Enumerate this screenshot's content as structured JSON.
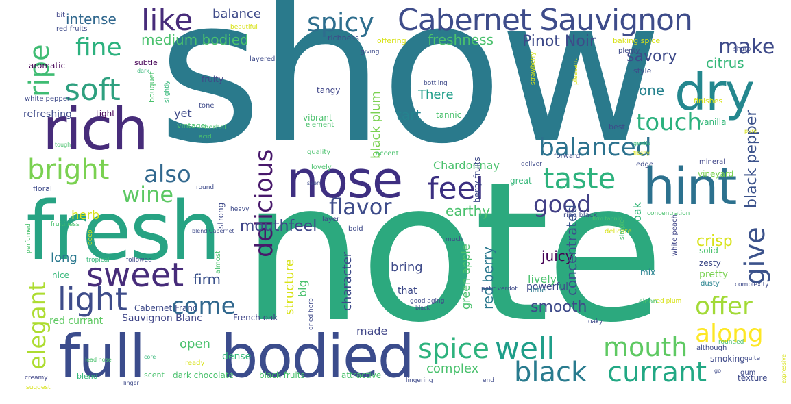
{
  "palette": {
    "background": "#ffffff"
  },
  "words": [
    {
      "text": "show",
      "color": "#2a7a8c"
    },
    {
      "text": "note",
      "color": "#2ca97e"
    },
    {
      "text": "fresh",
      "color": "#27a383"
    },
    {
      "text": "rich",
      "color": "#472c7a"
    },
    {
      "text": "nose",
      "color": "#3e2f81"
    },
    {
      "text": "full",
      "color": "#3b4c8c"
    },
    {
      "text": "bodied",
      "color": "#3b4c8c"
    },
    {
      "text": "dry",
      "color": "#24878e"
    },
    {
      "text": "hint",
      "color": "#2c718e"
    },
    {
      "text": "Cabernet Sauvignon",
      "color": "#3e4c8a"
    },
    {
      "text": "spicy",
      "color": "#2e6e8e"
    },
    {
      "text": "like",
      "color": "#472c7a"
    },
    {
      "text": "fine",
      "color": "#2cb17e"
    },
    {
      "text": "soft",
      "color": "#2ea07f"
    },
    {
      "text": "ripe",
      "color": "#3fbc73"
    },
    {
      "text": "bright",
      "color": "#7ad151"
    },
    {
      "text": "also",
      "color": "#31688e"
    },
    {
      "text": "wine",
      "color": "#5cc863"
    },
    {
      "text": "sweet",
      "color": "#472c7a"
    },
    {
      "text": "light",
      "color": "#3e4c8a"
    },
    {
      "text": "come",
      "color": "#31688e"
    },
    {
      "text": "elegant",
      "color": "#addc30"
    },
    {
      "text": "feel",
      "color": "#3b2f80"
    },
    {
      "text": "taste",
      "color": "#2db27d"
    },
    {
      "text": "balanced",
      "color": "#2c728e"
    },
    {
      "text": "touch",
      "color": "#2cb17e"
    },
    {
      "text": "flavor",
      "color": "#3e4c8a"
    },
    {
      "text": "good",
      "color": "#424086"
    },
    {
      "text": "delicious",
      "color": "#48196b"
    },
    {
      "text": "give",
      "color": "#3b528b"
    },
    {
      "text": "spice",
      "color": "#2db27d"
    },
    {
      "text": "well",
      "color": "#1f9e89"
    },
    {
      "text": "black",
      "color": "#297b8e"
    },
    {
      "text": "currant",
      "color": "#22a884"
    },
    {
      "text": "mouth",
      "color": "#5ec962"
    },
    {
      "text": "offer",
      "color": "#a2da37"
    },
    {
      "text": "along",
      "color": "#fde725"
    },
    {
      "text": "make",
      "color": "#3e4a89"
    },
    {
      "text": "savory",
      "color": "#3e4a89"
    },
    {
      "text": "citrus",
      "color": "#35b779"
    },
    {
      "text": "Pinot Noir",
      "color": "#3e4a89"
    },
    {
      "text": "freshness",
      "color": "#4ac16d"
    },
    {
      "text": "medium bodied",
      "color": "#4ac16d"
    },
    {
      "text": "intense",
      "color": "#31688e"
    },
    {
      "text": "balance",
      "color": "#3e4a89"
    },
    {
      "text": "black pepper",
      "color": "#3b528b"
    },
    {
      "text": "mouthfeel",
      "color": "#404688"
    },
    {
      "text": "earthy",
      "color": "#4ac16d"
    },
    {
      "text": "crisp",
      "color": "#d8e219"
    },
    {
      "text": "juicy",
      "color": "#440154"
    },
    {
      "text": "firm",
      "color": "#3b528b"
    },
    {
      "text": "smooth",
      "color": "#3e4a89"
    },
    {
      "text": "concentrated",
      "color": "#3b528b"
    },
    {
      "text": "red berry",
      "color": "#2a788e"
    },
    {
      "text": "structure",
      "color": "#d8e219"
    },
    {
      "text": "character",
      "color": "#3e4a89"
    },
    {
      "text": "bring",
      "color": "#3e4a89"
    },
    {
      "text": "green apple",
      "color": "#4ac16d"
    },
    {
      "text": "lively",
      "color": "#4ac16d"
    },
    {
      "text": "complex",
      "color": "#4ac16d"
    },
    {
      "text": "tart",
      "color": "#26828e"
    },
    {
      "text": "There",
      "color": "#1f9e89"
    },
    {
      "text": "black plum",
      "color": "#7ad151"
    },
    {
      "text": "Chardonnay",
      "color": "#4ac16d"
    },
    {
      "text": "one",
      "color": "#26828e"
    },
    {
      "text": "herb",
      "color": "#d8e219"
    },
    {
      "text": "long",
      "color": "#2a788e"
    },
    {
      "text": "open",
      "color": "#4ac16d"
    },
    {
      "text": "made",
      "color": "#404688"
    },
    {
      "text": "oak",
      "color": "#35b779"
    },
    {
      "text": "yet",
      "color": "#3e4a89"
    },
    {
      "text": "big",
      "color": "#4ac16d"
    },
    {
      "text": "that",
      "color": "#3e4a89"
    },
    {
      "text": "powerful",
      "color": "#3e4a89"
    },
    {
      "text": "pretty",
      "color": "#7ad151"
    },
    {
      "text": "dense",
      "color": "#35b779"
    },
    {
      "text": "refreshing",
      "color": "#3e4a89"
    },
    {
      "text": "aromatic",
      "color": "#440154"
    },
    {
      "text": "red currant",
      "color": "#5ec962"
    },
    {
      "text": "Sauvignon Blanc",
      "color": "#404688"
    },
    {
      "text": "Cabernet Franc",
      "color": "#3e4a89"
    },
    {
      "text": "dark chocolate",
      "color": "#4ac16d"
    },
    {
      "text": "black fruits",
      "color": "#4ac16d"
    },
    {
      "text": "attractive",
      "color": "#4ac16d"
    },
    {
      "text": "tannic",
      "color": "#4ac16d"
    },
    {
      "text": "vibrant",
      "color": "#4ac16d"
    },
    {
      "text": "tangy",
      "color": "#404688"
    },
    {
      "text": "fruity",
      "color": "#404688"
    },
    {
      "text": "vanilla",
      "color": "#35b779"
    },
    {
      "text": "vineyard",
      "color": "#7ad151"
    },
    {
      "text": "mineral",
      "color": "#404688"
    },
    {
      "text": "berry fruits",
      "color": "#3e4a89"
    },
    {
      "text": "French oak",
      "color": "#404688"
    },
    {
      "text": "zesty",
      "color": "#3e4a89"
    },
    {
      "text": "nice",
      "color": "#35b779"
    },
    {
      "text": "mix",
      "color": "#26828e"
    },
    {
      "text": "clean",
      "color": "#4ac16d"
    },
    {
      "text": "solid",
      "color": "#4ac16d"
    },
    {
      "text": "dusty",
      "color": "#26828e"
    },
    {
      "text": "smoking",
      "color": "#3e4a89"
    },
    {
      "text": "texture",
      "color": "#3e4a89"
    },
    {
      "text": "ready",
      "color": "#d8e219"
    },
    {
      "text": "little",
      "color": "#2a788e"
    },
    {
      "text": "quality",
      "color": "#4ac16d"
    },
    {
      "text": "accent",
      "color": "#4ac16d"
    },
    {
      "text": "lovely",
      "color": "#4ac16d"
    },
    {
      "text": "edge",
      "color": "#3e4a89"
    },
    {
      "text": "great",
      "color": "#35b779"
    },
    {
      "text": "forward",
      "color": "#3e4a89"
    },
    {
      "text": "strong",
      "color": "#3e4a89"
    },
    {
      "text": "layer",
      "color": "#404688"
    },
    {
      "text": "tight",
      "color": "#440154"
    },
    {
      "text": "subtle",
      "color": "#440154"
    },
    {
      "text": "bouquet",
      "color": "#4ac16d"
    },
    {
      "text": "richness",
      "color": "#3e4a89"
    },
    {
      "text": "offering",
      "color": "#d8e219"
    },
    {
      "text": "baking spice",
      "color": "#d8e219"
    },
    {
      "text": "style",
      "color": "#3e4a89"
    },
    {
      "text": "floral",
      "color": "#3e4a89"
    },
    {
      "text": "vintage",
      "color": "#4ac16d"
    },
    {
      "text": "blend",
      "color": "#35b779"
    },
    {
      "text": "scent",
      "color": "#4ac16d"
    },
    {
      "text": "finishes",
      "color": "#d8e219"
    },
    {
      "text": "best",
      "color": "#3e4a89"
    },
    {
      "text": "red fruits",
      "color": "#3e4a89"
    },
    {
      "text": "white pepper",
      "color": "#3e4a89"
    },
    {
      "text": "bit",
      "color": "#404688"
    },
    {
      "text": "almost",
      "color": "#4ac16d"
    },
    {
      "text": "delicate",
      "color": "#d8e219"
    },
    {
      "text": "white peach",
      "color": "#404688"
    },
    {
      "text": "ripe black",
      "color": "#3e4a89"
    },
    {
      "text": "element",
      "color": "#4ac16d"
    },
    {
      "text": "herbal",
      "color": "#4ac16d"
    },
    {
      "text": "layered",
      "color": "#3e4a89"
    },
    {
      "text": "bold",
      "color": "#3e4a89"
    },
    {
      "text": "tone",
      "color": "#3e4a89"
    },
    {
      "text": "plenty",
      "color": "#3e4a89"
    },
    {
      "text": "gum",
      "color": "#3e4a89"
    },
    {
      "text": "slightly",
      "color": "#35b779"
    },
    {
      "text": "bottling",
      "color": "#3e4a89"
    },
    {
      "text": "acid",
      "color": "#4ac16d"
    },
    {
      "text": "deep",
      "color": "#d8e219"
    },
    {
      "text": "tropical",
      "color": "#35b779"
    },
    {
      "text": "although",
      "color": "#3e4a89"
    },
    {
      "text": "quite",
      "color": "#3e4a89"
    },
    {
      "text": "simple",
      "color": "#4ac16d"
    },
    {
      "text": "rounded",
      "color": "#4ac16d"
    },
    {
      "text": "creamy",
      "color": "#404688"
    },
    {
      "text": "suggest",
      "color": "#d8e219"
    },
    {
      "text": "linger",
      "color": "#3e4a89"
    },
    {
      "text": "lingering",
      "color": "#3e4a89"
    },
    {
      "text": "end",
      "color": "#3e4a89"
    },
    {
      "text": "concentration",
      "color": "#4ac16d"
    },
    {
      "text": "red plum",
      "color": "#d8e219"
    },
    {
      "text": "complexity",
      "color": "#3e4a89"
    },
    {
      "text": "dried herb",
      "color": "#3e4a89"
    },
    {
      "text": "good aging",
      "color": "#3e4a89"
    },
    {
      "text": "petit verdot",
      "color": "#3e4a89"
    },
    {
      "text": "oaky",
      "color": "#3e4a89"
    },
    {
      "text": "much",
      "color": "#3e4a89"
    },
    {
      "text": "followed",
      "color": "#3e4a89"
    },
    {
      "text": "perfumed",
      "color": "#4ac16d"
    },
    {
      "text": "fruitiness",
      "color": "#4ac16d"
    },
    {
      "text": "giving",
      "color": "#3e4a89"
    },
    {
      "text": "sharp",
      "color": "#3e4a89"
    },
    {
      "text": "strawberry",
      "color": "#d8e219"
    },
    {
      "text": "pleasant",
      "color": "#d8e219"
    },
    {
      "text": "beautiful",
      "color": "#d8e219"
    },
    {
      "text": "deliver",
      "color": "#3e4a89"
    },
    {
      "text": "heavy",
      "color": "#3e4a89"
    },
    {
      "text": "round",
      "color": "#3e4a89"
    },
    {
      "text": "lead nose",
      "color": "#4ac16d"
    },
    {
      "text": "core",
      "color": "#35b779"
    },
    {
      "text": "dark",
      "color": "#35b779"
    },
    {
      "text": "seem",
      "color": "#3e4a89"
    },
    {
      "text": "gentle",
      "color": "#35b779"
    },
    {
      "text": "fleshy",
      "color": "#d8e219"
    },
    {
      "text": "tough",
      "color": "#4ac16d"
    },
    {
      "text": "firm tannin",
      "color": "#4ac16d"
    },
    {
      "text": "expressive",
      "color": "#d8e219"
    },
    {
      "text": "go",
      "color": "#3e4a89"
    },
    {
      "text": "black",
      "color": "#3e4a89"
    },
    {
      "text": "blend Cabernet",
      "color": "#3e4a89"
    },
    {
      "text": "pure",
      "color": "#d8e219"
    }
  ]
}
